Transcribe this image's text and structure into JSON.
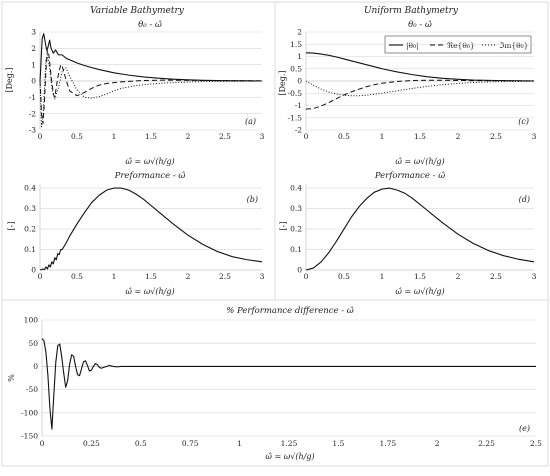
{
  "headers": {
    "left": "Variable Bathymetry",
    "right": "Uniform Bathymetry"
  },
  "x_label": "ω̂ = ω√(h/g)",
  "chart_data": [
    {
      "id": "a",
      "type": "line",
      "title": "θ₀ - ω̂",
      "panel_label": "(a)",
      "xlabel": "",
      "ylabel": "[Deg.]",
      "xlim": [
        0,
        3
      ],
      "ylim": [
        -3,
        3
      ],
      "xticks": [
        0,
        0.5,
        1,
        1.5,
        2,
        2.5,
        3
      ],
      "yticks": [
        -3,
        -2,
        -1,
        0,
        1,
        2,
        3
      ],
      "grid": true,
      "series": [
        {
          "style": "solid",
          "x": [
            0,
            0.01,
            0.02,
            0.03,
            0.05,
            0.07,
            0.09,
            0.11,
            0.13,
            0.15,
            0.18,
            0.21,
            0.25,
            0.3,
            0.35,
            0.4,
            0.5,
            0.6,
            0.7,
            0.8,
            0.9,
            1.0,
            1.2,
            1.4,
            1.6,
            1.8,
            2.0,
            2.2,
            2.5,
            2.8,
            3.0
          ],
          "y": [
            0,
            0.8,
            1.8,
            2.6,
            2.9,
            2.4,
            1.9,
            2.1,
            2.5,
            2.0,
            1.7,
            1.9,
            1.6,
            1.6,
            1.4,
            1.3,
            1.1,
            0.95,
            0.82,
            0.7,
            0.6,
            0.5,
            0.36,
            0.25,
            0.17,
            0.11,
            0.07,
            0.04,
            0.02,
            0.01,
            0.0
          ]
        },
        {
          "style": "dashed",
          "x": [
            0,
            0.01,
            0.02,
            0.04,
            0.06,
            0.08,
            0.1,
            0.12,
            0.15,
            0.18,
            0.2,
            0.24,
            0.28,
            0.3,
            0.35,
            0.4,
            0.5,
            0.6,
            0.7,
            0.8,
            0.9,
            1.0,
            1.1,
            1.2,
            1.4,
            1.6,
            1.8,
            2.0,
            2.5,
            3.0
          ],
          "y": [
            0,
            -0.8,
            -2.0,
            -2.6,
            -1.3,
            0.6,
            1.9,
            1.6,
            0.3,
            -0.8,
            -1.0,
            0.2,
            1.0,
            0.9,
            0.1,
            -0.6,
            -0.9,
            -0.7,
            -0.45,
            -0.25,
            -0.15,
            -0.1,
            -0.05,
            -0.02,
            0.03,
            0.05,
            0.05,
            0.04,
            0.02,
            0.01
          ]
        },
        {
          "style": "dotted",
          "x": [
            0,
            0.02,
            0.04,
            0.06,
            0.08,
            0.1,
            0.13,
            0.16,
            0.2,
            0.25,
            0.3,
            0.35,
            0.4,
            0.5,
            0.6,
            0.7,
            0.8,
            0.9,
            1.0,
            1.1,
            1.3,
            1.5,
            1.7,
            1.9,
            2.1,
            2.3,
            2.5,
            2.8,
            3.0
          ],
          "y": [
            0,
            -2.8,
            -2.2,
            -0.5,
            1.3,
            1.6,
            0.8,
            -0.4,
            -1.1,
            -0.4,
            0.6,
            0.8,
            0.3,
            -0.55,
            -1.0,
            -1.05,
            -0.95,
            -0.8,
            -0.6,
            -0.45,
            -0.28,
            -0.18,
            -0.12,
            -0.08,
            -0.05,
            -0.03,
            -0.02,
            -0.01,
            0.0
          ]
        }
      ]
    },
    {
      "id": "c",
      "type": "line",
      "title": "θ₀ - ω̂",
      "panel_label": "(c)",
      "xlabel": "",
      "ylabel": "[Deg.]",
      "xlim": [
        0,
        3
      ],
      "ylim": [
        -2,
        2
      ],
      "xticks": [
        0,
        0.5,
        1,
        1.5,
        2,
        2.5,
        3
      ],
      "yticks": [
        -2,
        -1.5,
        -1,
        -0.5,
        0,
        0.5,
        1,
        1.5,
        2
      ],
      "grid": true,
      "legend": {
        "position": "top-right",
        "entries": [
          "|θ₀|",
          "ℜe{θ₀}",
          "ℑm{θ₀}"
        ]
      },
      "series": [
        {
          "name": "|θ₀|",
          "style": "solid",
          "x": [
            0,
            0.1,
            0.2,
            0.3,
            0.4,
            0.5,
            0.6,
            0.8,
            1.0,
            1.2,
            1.4,
            1.6,
            1.8,
            2.0,
            2.2,
            2.5,
            3.0
          ],
          "y": [
            1.15,
            1.14,
            1.1,
            1.05,
            0.98,
            0.9,
            0.82,
            0.66,
            0.5,
            0.37,
            0.26,
            0.17,
            0.11,
            0.07,
            0.04,
            0.02,
            0.005
          ]
        },
        {
          "name": "ℜe{θ₀}",
          "style": "dashed",
          "x": [
            0,
            0.1,
            0.2,
            0.3,
            0.4,
            0.5,
            0.6,
            0.7,
            0.8,
            0.9,
            1.0,
            1.2,
            1.4,
            1.6,
            1.8,
            2.0,
            2.5,
            3.0
          ],
          "y": [
            -1.15,
            -1.12,
            -1.02,
            -0.88,
            -0.72,
            -0.57,
            -0.44,
            -0.33,
            -0.23,
            -0.15,
            -0.09,
            -0.02,
            0.02,
            0.03,
            0.03,
            0.02,
            0.01,
            0.0
          ]
        },
        {
          "name": "ℑm{θ₀}",
          "style": "dotted",
          "x": [
            0,
            0.1,
            0.2,
            0.3,
            0.4,
            0.5,
            0.6,
            0.7,
            0.8,
            1.0,
            1.2,
            1.4,
            1.6,
            1.8,
            2.0,
            2.2,
            2.5,
            3.0
          ],
          "y": [
            0.0,
            -0.18,
            -0.33,
            -0.45,
            -0.53,
            -0.58,
            -0.6,
            -0.6,
            -0.58,
            -0.5,
            -0.4,
            -0.3,
            -0.22,
            -0.15,
            -0.1,
            -0.06,
            -0.03,
            -0.01
          ]
        }
      ]
    },
    {
      "id": "b",
      "type": "line",
      "title": "Preformance - ω̂",
      "panel_label": "(b)",
      "xlabel": "",
      "ylabel": "[-]",
      "xlim": [
        0,
        3
      ],
      "ylim": [
        0,
        0.42
      ],
      "xticks": [
        0,
        0.5,
        1,
        1.5,
        2,
        2.5,
        3
      ],
      "yticks": [
        0,
        0.1,
        0.2,
        0.3,
        0.4
      ],
      "grid": true,
      "series": [
        {
          "style": "solid",
          "x": [
            0,
            0.04,
            0.06,
            0.08,
            0.1,
            0.12,
            0.14,
            0.16,
            0.18,
            0.2,
            0.22,
            0.24,
            0.26,
            0.28,
            0.3,
            0.35,
            0.4,
            0.5,
            0.6,
            0.7,
            0.8,
            0.9,
            1.0,
            1.1,
            1.2,
            1.3,
            1.4,
            1.5,
            1.6,
            1.7,
            1.8,
            2.0,
            2.2,
            2.4,
            2.6,
            2.8,
            3.0
          ],
          "y": [
            0,
            0.005,
            0.002,
            0.015,
            0.005,
            0.025,
            0.015,
            0.04,
            0.03,
            0.06,
            0.05,
            0.08,
            0.075,
            0.1,
            0.1,
            0.13,
            0.165,
            0.225,
            0.28,
            0.33,
            0.365,
            0.39,
            0.4,
            0.4,
            0.39,
            0.37,
            0.345,
            0.315,
            0.285,
            0.255,
            0.225,
            0.17,
            0.125,
            0.09,
            0.065,
            0.05,
            0.04
          ]
        }
      ]
    },
    {
      "id": "d",
      "type": "line",
      "title": "Performance - ω̂",
      "panel_label": "(d)",
      "xlabel": "",
      "ylabel": "[-]",
      "xlim": [
        0,
        3
      ],
      "ylim": [
        0,
        0.42
      ],
      "xticks": [
        0,
        0.5,
        1,
        1.5,
        2,
        2.5,
        3
      ],
      "yticks": [
        0,
        0.1,
        0.2,
        0.3,
        0.4
      ],
      "grid": true,
      "series": [
        {
          "style": "solid",
          "x": [
            0,
            0.1,
            0.2,
            0.3,
            0.4,
            0.5,
            0.6,
            0.7,
            0.8,
            0.9,
            1.0,
            1.1,
            1.2,
            1.3,
            1.4,
            1.5,
            1.6,
            1.7,
            1.8,
            2.0,
            2.2,
            2.4,
            2.6,
            2.8,
            3.0
          ],
          "y": [
            0,
            0.01,
            0.04,
            0.085,
            0.14,
            0.2,
            0.26,
            0.31,
            0.35,
            0.38,
            0.395,
            0.4,
            0.39,
            0.375,
            0.35,
            0.32,
            0.29,
            0.26,
            0.23,
            0.175,
            0.13,
            0.095,
            0.07,
            0.052,
            0.04
          ]
        }
      ]
    },
    {
      "id": "e",
      "type": "line",
      "title": "% Performance difference - ω̂",
      "panel_label": "(e)",
      "xlabel": "ω̂ = ω√(h/g)",
      "ylabel": "%",
      "xlim": [
        0,
        2.5
      ],
      "ylim": [
        -150,
        100
      ],
      "xticks": [
        0,
        0.25,
        0.5,
        0.75,
        1,
        1.25,
        1.5,
        1.75,
        2,
        2.25,
        2.5
      ],
      "yticks": [
        -150,
        -100,
        -50,
        0,
        50,
        100
      ],
      "grid": true,
      "series": [
        {
          "style": "solid",
          "x": [
            0,
            0.01,
            0.02,
            0.03,
            0.04,
            0.05,
            0.06,
            0.07,
            0.08,
            0.09,
            0.1,
            0.11,
            0.12,
            0.13,
            0.14,
            0.15,
            0.16,
            0.17,
            0.18,
            0.19,
            0.2,
            0.21,
            0.22,
            0.23,
            0.24,
            0.25,
            0.26,
            0.27,
            0.28,
            0.29,
            0.3,
            0.32,
            0.34,
            0.36,
            0.38,
            0.4,
            0.5,
            0.75,
            1.0,
            1.5,
            2.0,
            2.5
          ],
          "y": [
            60,
            55,
            30,
            -20,
            -90,
            -135,
            -60,
            10,
            45,
            48,
            20,
            -15,
            -45,
            -30,
            5,
            25,
            22,
            0,
            -18,
            -20,
            -5,
            10,
            12,
            2,
            -10,
            -8,
            0,
            6,
            4,
            -2,
            -4,
            -1,
            2,
            0,
            -1,
            0,
            0,
            0,
            0,
            0,
            0,
            0
          ]
        }
      ]
    }
  ]
}
